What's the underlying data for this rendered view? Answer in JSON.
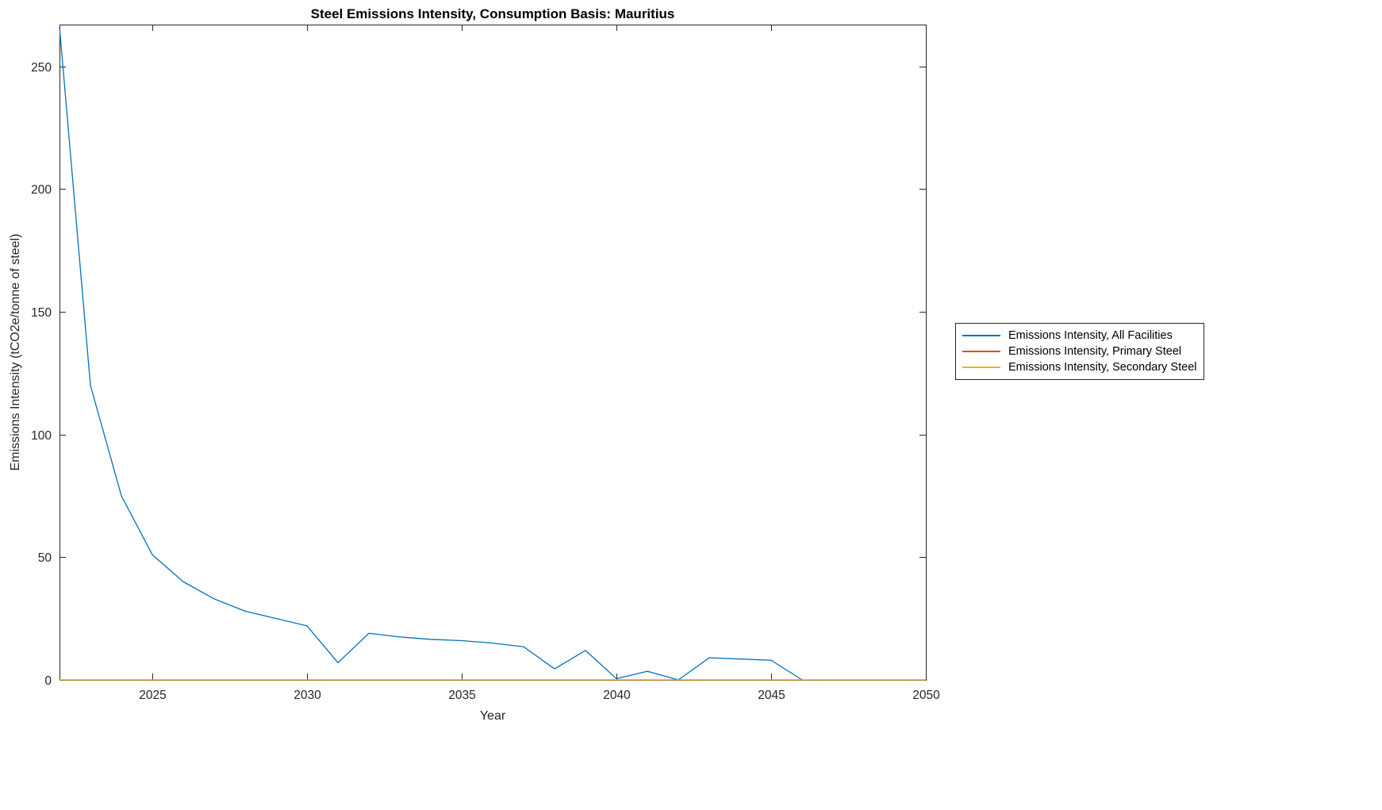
{
  "chart_data": {
    "type": "line",
    "title": "Steel Emissions Intensity, Consumption Basis: Mauritius",
    "xlabel": "Year",
    "ylabel": "Emissions Intensity (tCO2e/tonne of steel)",
    "xlim": [
      2022,
      2050
    ],
    "ylim": [
      0,
      267
    ],
    "x_ticks": [
      2025,
      2030,
      2035,
      2040,
      2045,
      2050
    ],
    "y_ticks": [
      0,
      50,
      100,
      150,
      200,
      250
    ],
    "grid": false,
    "legend_position": "right-outside",
    "series": [
      {
        "name": "Emissions Intensity, All Facilities",
        "color": "#0072BD",
        "x_start": 2022,
        "values": [
          266,
          120,
          75,
          51,
          40,
          33,
          28,
          25,
          22,
          7,
          19,
          17.5,
          16.5,
          16,
          15,
          13.5,
          4.5,
          12,
          0.5,
          3.5,
          0,
          9,
          8.5,
          8,
          0
        ]
      },
      {
        "name": "Emissions Intensity, Primary Steel",
        "color": "#D95319",
        "x_start": 2022,
        "values": [
          0,
          0,
          0,
          0,
          0,
          0,
          0,
          0,
          0,
          0,
          0,
          0,
          0,
          0,
          0,
          0,
          0,
          0,
          0,
          0,
          0,
          0,
          0,
          0,
          0,
          0,
          0,
          0,
          0
        ]
      },
      {
        "name": "Emissions Intensity, Secondary Steel",
        "color": "#EDB120",
        "x_start": 2022,
        "values": [
          0,
          0,
          0,
          0,
          0,
          0,
          0,
          0,
          0,
          0,
          0,
          0,
          0,
          0,
          0,
          0,
          0,
          0,
          0,
          0,
          0,
          0,
          0,
          0,
          0,
          0,
          0,
          0,
          0
        ]
      }
    ]
  }
}
